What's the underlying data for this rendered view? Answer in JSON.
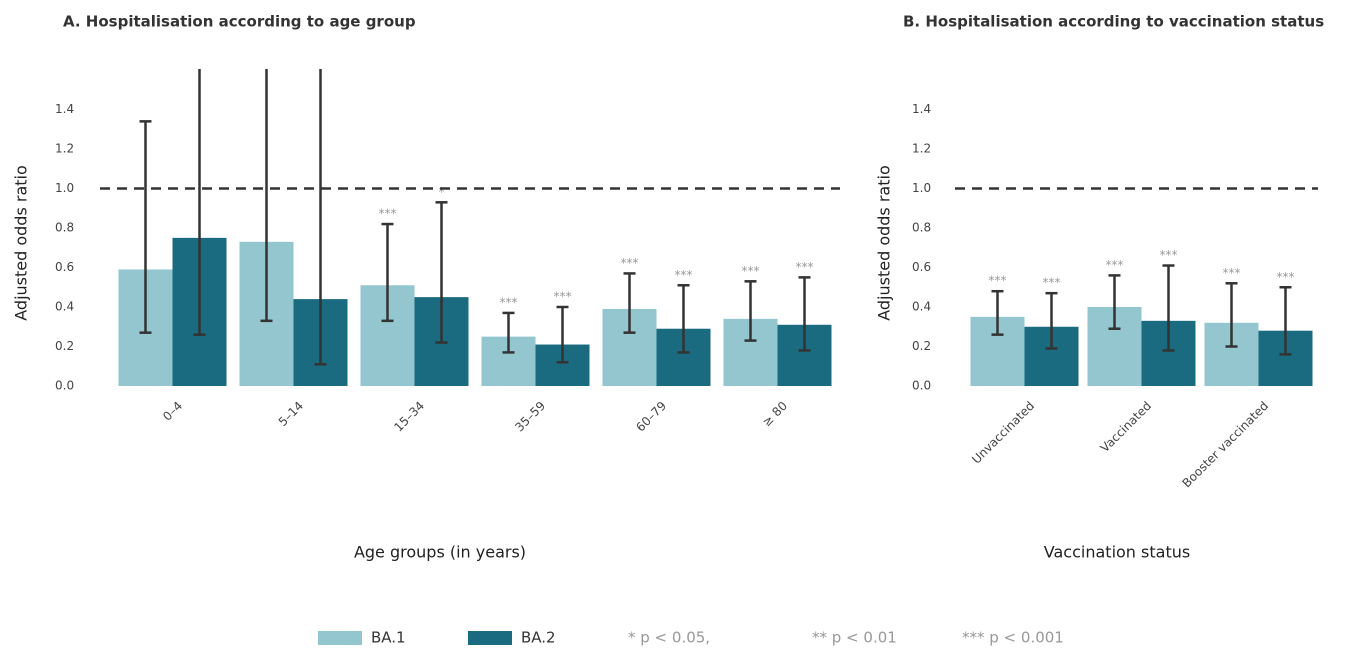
{
  "chart_data": [
    {
      "type": "bar",
      "title": "A. Hospitalisation according to age group",
      "xlabel": "Age groups (in years)",
      "ylabel": "Adjusted odds ratio",
      "categories": [
        "0–4",
        "5–14",
        "15–34",
        "35–59",
        "60–79",
        "≥ 80"
      ],
      "series": [
        {
          "name": "BA.1",
          "color": "#93c6cf",
          "values": [
            0.59,
            0.73,
            0.51,
            0.25,
            0.39,
            0.34
          ],
          "lower": [
            0.27,
            0.33,
            0.33,
            0.17,
            0.27,
            0.23
          ],
          "upper": [
            1.34,
            2.0,
            0.82,
            0.37,
            0.57,
            0.53
          ],
          "significance": [
            null,
            null,
            "***",
            "***",
            "***",
            "***"
          ]
        },
        {
          "name": "BA.2",
          "color": "#1a6b80",
          "values": [
            0.75,
            0.44,
            0.45,
            0.21,
            0.29,
            0.31
          ],
          "lower": [
            0.26,
            0.11,
            0.22,
            0.12,
            0.17,
            0.18
          ],
          "upper": [
            2.0,
            2.0,
            0.93,
            0.4,
            0.51,
            0.55
          ],
          "significance": [
            null,
            null,
            "*",
            "***",
            "***",
            "***"
          ]
        }
      ],
      "ylim": [
        0,
        1.6
      ],
      "yticks": [
        {
          "value": 0,
          "label": "0.0"
        },
        0.2,
        0.4,
        0.6,
        0.8,
        {
          "value": 1,
          "label": "1.0"
        },
        1.2,
        1.4
      ],
      "reference_line": 1
    },
    {
      "type": "bar",
      "title": "B. Hospitalisation according to vaccination status",
      "xlabel": "Vaccination status",
      "ylabel": "Adjusted odds ratio",
      "categories": [
        "Unvaccinated",
        "Vaccinated",
        "Booster vaccinated"
      ],
      "series": [
        {
          "color": "#93c6cf",
          "values": [
            0.35,
            0.4,
            0.32
          ],
          "lower": [
            0.26,
            0.29,
            0.2
          ],
          "upper": [
            0.48,
            0.56,
            0.52
          ],
          "significance": [
            "***",
            "***",
            "***"
          ]
        },
        {
          "color": "#1a6b80",
          "values": [
            0.3,
            0.33,
            0.28
          ],
          "lower": [
            0.19,
            0.18,
            0.16
          ],
          "upper": [
            0.47,
            0.61,
            0.5
          ],
          "significance": [
            "***",
            "***",
            "***"
          ]
        }
      ],
      "ylim": [
        0,
        1.6
      ],
      "yticks": [
        {
          "value": 0,
          "label": "0.0"
        },
        0.2,
        0.4,
        0.6,
        0.8,
        {
          "value": 1,
          "label": "1.0"
        },
        1.2,
        1.4
      ],
      "reference_line": 1
    }
  ],
  "notes": [
    "* p < 0.05,",
    "** p < 0.01",
    "*** p < 0.001"
  ]
}
